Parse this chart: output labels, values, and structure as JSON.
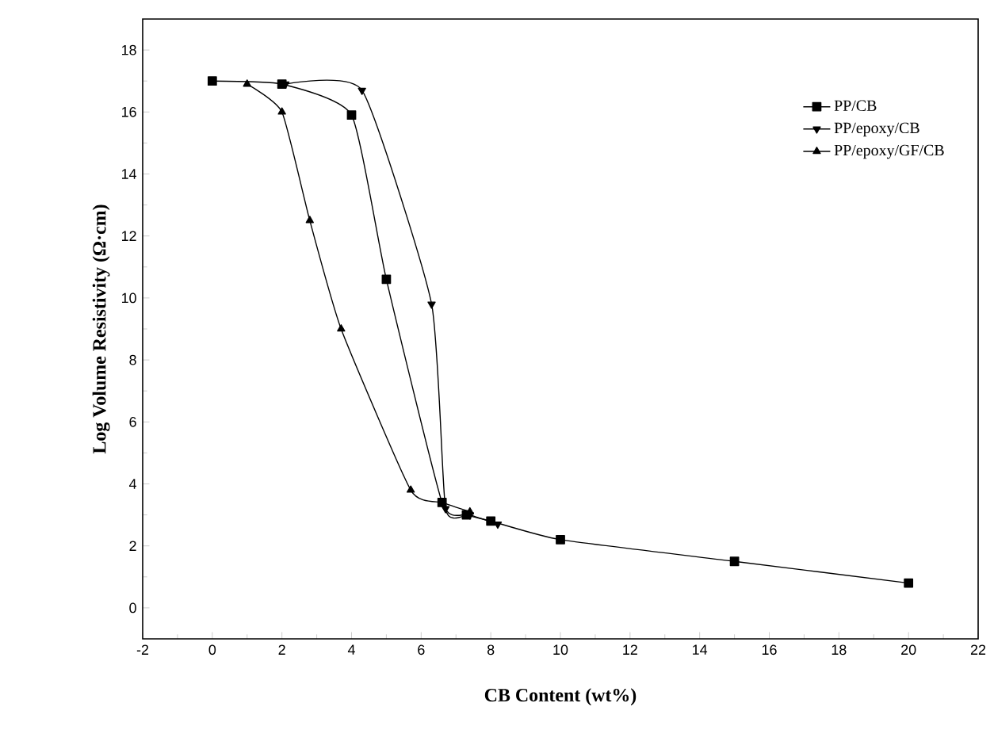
{
  "chart_data": {
    "type": "line",
    "xlabel": "CB Content (wt%)",
    "ylabel": "Log Volume Resistivity (Ω·cm)",
    "xlim": [
      -2,
      22
    ],
    "xticks": [
      -2,
      0,
      2,
      4,
      6,
      8,
      10,
      12,
      14,
      16,
      18,
      20,
      22
    ],
    "ylim": [
      -1,
      19
    ],
    "yticks": [
      0,
      2,
      4,
      6,
      8,
      10,
      12,
      14,
      16,
      18
    ],
    "legend": "top right",
    "grid": false,
    "series": [
      {
        "name": "PP/CB",
        "color": "#000000",
        "marker": "square",
        "x": [
          0,
          2,
          4,
          5,
          6.6,
          7.3,
          8,
          10,
          15,
          20
        ],
        "values": [
          17.0,
          16.9,
          15.9,
          10.6,
          3.4,
          3.0,
          2.8,
          2.2,
          1.5,
          0.8
        ]
      },
      {
        "name": "PP/epoxy/CB",
        "color": "#000000",
        "marker": "triangle down",
        "x": [
          2.1,
          4.3,
          6.3,
          6.7,
          7.4,
          8.2
        ],
        "values": [
          16.9,
          16.7,
          9.8,
          3.2,
          3.0,
          2.7
        ]
      },
      {
        "name": "PP/epoxy/GF/CB",
        "color": "#000000",
        "marker": "triangle",
        "x": [
          1,
          2,
          2.8,
          3.7,
          5.7,
          6.6,
          7.4
        ],
        "values": [
          16.9,
          16.0,
          12.5,
          9.0,
          3.8,
          3.4,
          3.1
        ]
      }
    ]
  }
}
